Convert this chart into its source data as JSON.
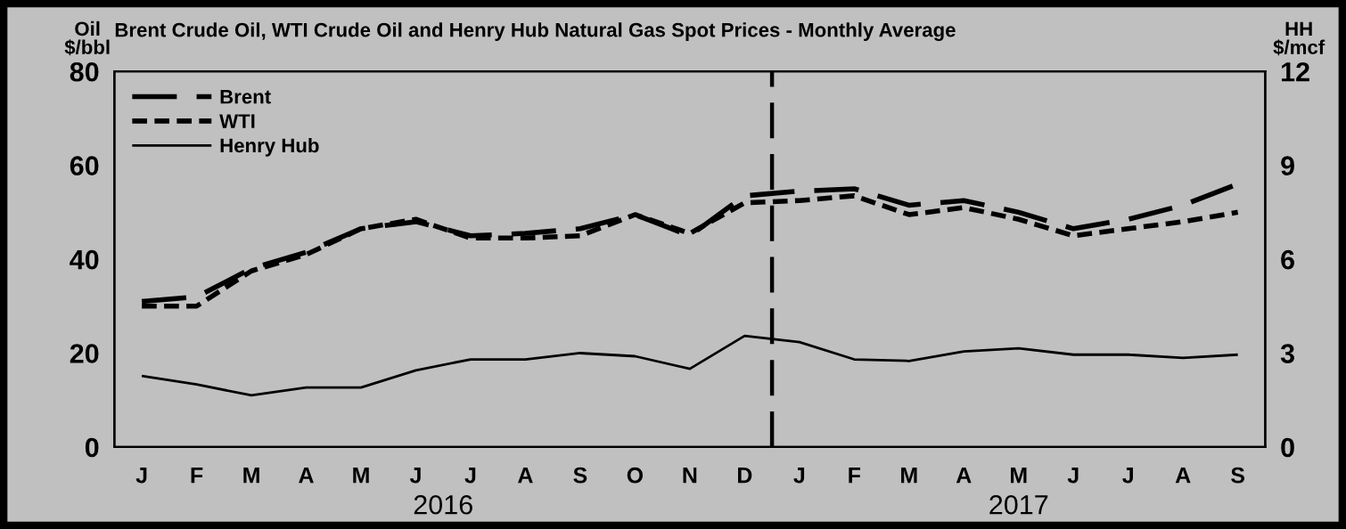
{
  "chart_data": {
    "type": "line",
    "title": "Brent Crude Oil, WTI Crude Oil and Henry Hub Natural Gas Spot Prices - Monthly Average",
    "ylabel": "Oil\n$/bbl",
    "y2label": "HH\n$/mcf",
    "categories": [
      "J",
      "F",
      "M",
      "A",
      "M",
      "J",
      "J",
      "A",
      "S",
      "O",
      "N",
      "D",
      "J",
      "F",
      "M",
      "A",
      "M",
      "J",
      "J",
      "A",
      "S"
    ],
    "series": [
      {
        "name": "Brent",
        "color": "#000000",
        "line_style": "dashed",
        "values": [
          31,
          32,
          38,
          41.5,
          46.5,
          48,
          45,
          45.5,
          46.5,
          49.5,
          45,
          53.5,
          54.5,
          55,
          51.5,
          52.5,
          50,
          46.5,
          48.5,
          51.5,
          56
        ]
      },
      {
        "name": "WTI",
        "color": "#000000",
        "line_style": "dotted",
        "values": [
          30,
          30,
          37.5,
          41,
          46.5,
          48.5,
          44.5,
          44.5,
          45,
          49.5,
          45.5,
          52,
          52.5,
          53.5,
          49.5,
          51,
          48.5,
          45,
          46.5,
          48,
          50
        ]
      },
      {
        "name": "Henry Hub",
        "color": "#000000",
        "line_style": "solid",
        "axis": "y2",
        "values": [
          2.27,
          2.0,
          1.65,
          1.9,
          1.9,
          2.45,
          2.8,
          2.8,
          3.0,
          2.9,
          2.5,
          3.55,
          3.35,
          2.8,
          2.75,
          3.05,
          3.15,
          2.95,
          2.95,
          2.85,
          2.95
        ]
      }
    ],
    "ylim": [
      0,
      80
    ],
    "yticks": [
      0,
      20,
      40,
      60,
      80
    ],
    "y2lim": [
      0,
      12
    ],
    "y2ticks": [
      0,
      3,
      6,
      9,
      12
    ],
    "annotations": [
      "2016",
      "2017"
    ],
    "legend": "top left",
    "grid": false,
    "marker": "none"
  }
}
